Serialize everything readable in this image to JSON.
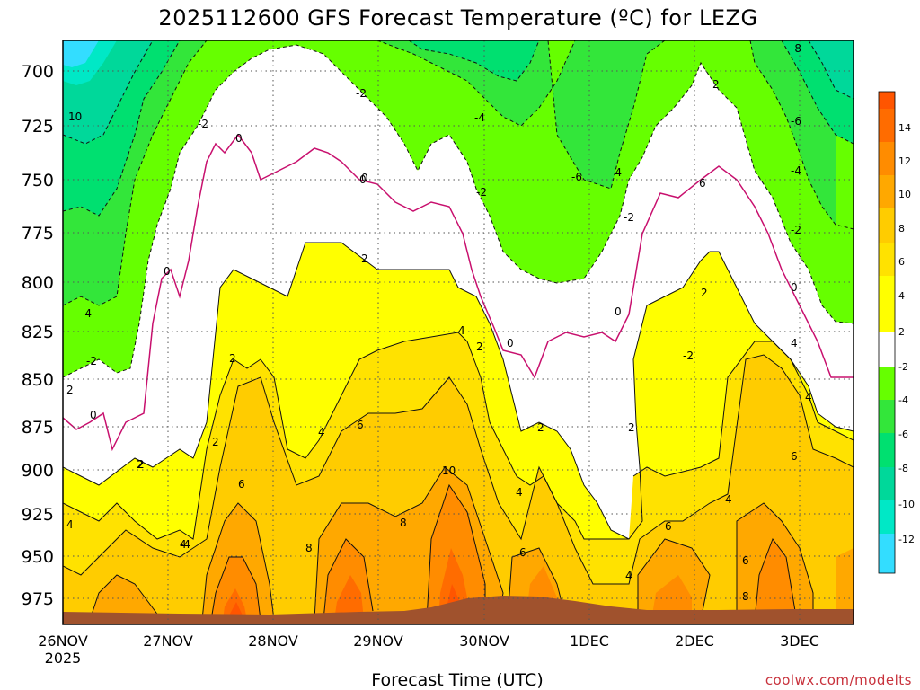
{
  "chart_data": {
    "type": "heatmap",
    "title": "2025112600 GFS Forecast Temperature (ºC) for LEZG",
    "xlabel": "Forecast Time (UTC)",
    "ylabel": "",
    "credit": "coolwx.com/modelts",
    "x_ticks": [
      "26NOV",
      "27NOV",
      "28NOV",
      "29NOV",
      "30NOV",
      "1DEC",
      "2DEC",
      "3DEC"
    ],
    "x_first_sublabel": "2025",
    "y_ticks": [
      700,
      725,
      750,
      775,
      800,
      825,
      850,
      875,
      900,
      925,
      950,
      975
    ],
    "y_range_hpa": [
      685,
      990
    ],
    "x_range_hours": [
      0,
      180
    ],
    "colorbar": {
      "levels": [
        -14,
        -12,
        -10,
        -8,
        -6,
        -4,
        -2,
        2,
        4,
        6,
        8,
        10,
        12,
        14,
        16
      ],
      "labels": [
        "14",
        "12",
        "10",
        "8",
        "6",
        "4",
        "2",
        "-2",
        "-4",
        "-6",
        "-8",
        "-10",
        "-12"
      ],
      "colors": [
        "#33ddff",
        "#00e8c6",
        "#00d89a",
        "#00e070",
        "#33e63a",
        "#66ff00",
        "#ffffff",
        "#ffff00",
        "#ffe200",
        "#ffcc00",
        "#ffa800",
        "#ff8c00",
        "#ff6c00",
        "#ff5500"
      ]
    },
    "contour_labels": [
      "10",
      "-2",
      "0",
      "-4",
      "-2",
      "0",
      "-2",
      "-4",
      "-6",
      "-2",
      "-4",
      "-2",
      "0",
      "-8",
      "-6",
      "-4",
      "-2",
      "0",
      "2",
      "2",
      "4",
      "2",
      "0",
      "2",
      "2",
      "4",
      "6",
      "4",
      "2",
      "0",
      "2",
      "6",
      "4",
      "2",
      "4",
      "6",
      "8",
      "10",
      "6",
      "4",
      "6",
      "8",
      "4",
      "6",
      "8",
      "-4",
      "-2",
      "0",
      "2",
      "4",
      "6",
      "2",
      "4",
      "2",
      "0"
    ],
    "isolines_c": [
      -8,
      -6,
      -4,
      -2,
      0,
      2,
      4,
      6,
      8,
      10
    ],
    "terrain_color": "#a0522d"
  }
}
